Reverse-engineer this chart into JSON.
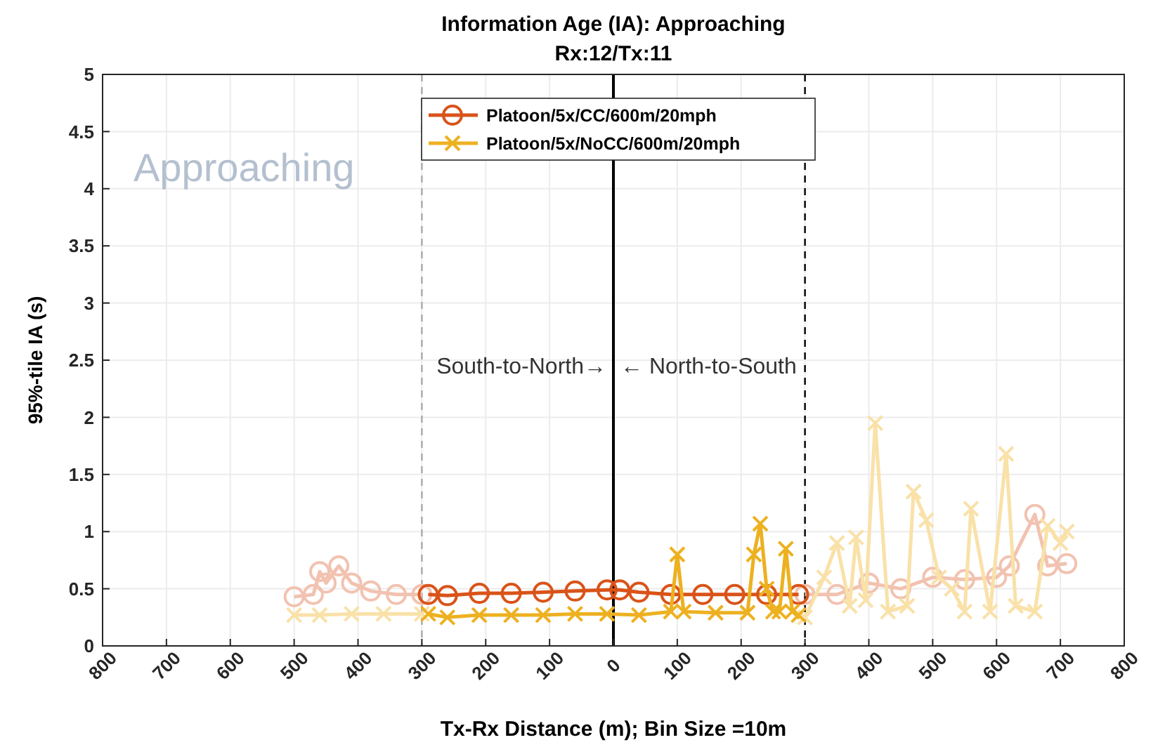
{
  "chart_data": {
    "type": "line",
    "title": "Information Age (IA): Approaching",
    "subtitle": "Rx:12/Tx:11",
    "xlabel": "Tx-Rx Distance (m); Bin Size =10m",
    "ylabel": "95%-tile IA (s)",
    "xlim": [
      -800,
      800
    ],
    "xticks": [
      {
        "value": -800,
        "label": "800"
      },
      {
        "value": -700,
        "label": "700"
      },
      {
        "value": -600,
        "label": "600"
      },
      {
        "value": -500,
        "label": "500"
      },
      {
        "value": -400,
        "label": "400"
      },
      {
        "value": -300,
        "label": "300"
      },
      {
        "value": -200,
        "label": "200"
      },
      {
        "value": -100,
        "label": "100"
      },
      0,
      100,
      200,
      300,
      400,
      500,
      600,
      700,
      800
    ],
    "ylim": [
      0,
      5
    ],
    "yticks": [
      0,
      0.5,
      1,
      1.5,
      2,
      2.5,
      3,
      3.5,
      4,
      4.5,
      5
    ],
    "grid": true,
    "legend": "top",
    "line_style": "solid",
    "series": [
      {
        "color": "#f2c2b0",
        "marker": "circle",
        "x": [
          -500,
          -470,
          -460,
          -450,
          -430,
          -410,
          -380,
          -340,
          -300
        ],
        "values": [
          0.43,
          0.45,
          0.65,
          0.55,
          0.7,
          0.55,
          0.48,
          0.45,
          0.45
        ]
      },
      {
        "color": "#f9e1a8",
        "marker": "cross",
        "x": [
          -500,
          -460,
          -410,
          -360,
          -300
        ],
        "values": [
          0.27,
          0.27,
          0.28,
          0.28,
          0.28
        ]
      },
      {
        "color": "#f2c2b0",
        "marker": "circle",
        "x": [
          300,
          350,
          400,
          450,
          500,
          550,
          600,
          620,
          660,
          680,
          710
        ],
        "values": [
          0.45,
          0.45,
          0.55,
          0.5,
          0.6,
          0.58,
          0.6,
          0.7,
          1.15,
          0.7,
          0.72
        ]
      },
      {
        "color": "#f9e1a8",
        "marker": "cross",
        "x": [
          300,
          330,
          350,
          370,
          380,
          395,
          410,
          430,
          460,
          470,
          490,
          510,
          530,
          550,
          560,
          590,
          615,
          630,
          660,
          680,
          700,
          710
        ],
        "values": [
          0.25,
          0.6,
          0.9,
          0.35,
          0.95,
          0.4,
          1.95,
          0.3,
          0.35,
          1.35,
          1.1,
          0.6,
          0.5,
          0.3,
          1.2,
          0.3,
          1.68,
          0.35,
          0.3,
          1.05,
          0.9,
          1.0
        ]
      },
      {
        "name": "Platoon/5x/CC/600m/20mph",
        "color": "#d95319",
        "marker": "circle",
        "x": [
          -290,
          -260,
          -210,
          -160,
          -110,
          -60,
          -10,
          10,
          40,
          90,
          140,
          190,
          240,
          290
        ],
        "values": [
          0.45,
          0.44,
          0.46,
          0.46,
          0.47,
          0.48,
          0.49,
          0.49,
          0.47,
          0.45,
          0.45,
          0.45,
          0.45,
          0.45
        ]
      },
      {
        "name": "Platoon/5x/NoCC/600m/20mph",
        "color": "#edb120",
        "marker": "cross",
        "x": [
          -290,
          -260,
          -210,
          -160,
          -110,
          -60,
          -10,
          40,
          90,
          100,
          110,
          160,
          210,
          220,
          230,
          240,
          250,
          260,
          270,
          280,
          290
        ],
        "values": [
          0.28,
          0.25,
          0.27,
          0.27,
          0.27,
          0.28,
          0.28,
          0.27,
          0.3,
          0.8,
          0.3,
          0.29,
          0.29,
          0.8,
          1.07,
          0.5,
          0.3,
          0.3,
          0.85,
          0.3,
          0.27
        ]
      }
    ],
    "ref_lines": [
      {
        "axis": "x",
        "value": -300,
        "color": "#aaaaaa",
        "line_style": "dashed"
      },
      {
        "axis": "x",
        "value": 0,
        "color": "#000000",
        "line_style": "solid"
      },
      {
        "axis": "x",
        "value": 300,
        "color": "#000000",
        "line_style": "dashed"
      }
    ],
    "annotations": [
      "Approaching",
      "South-to-North→",
      "← North-to-South"
    ]
  }
}
